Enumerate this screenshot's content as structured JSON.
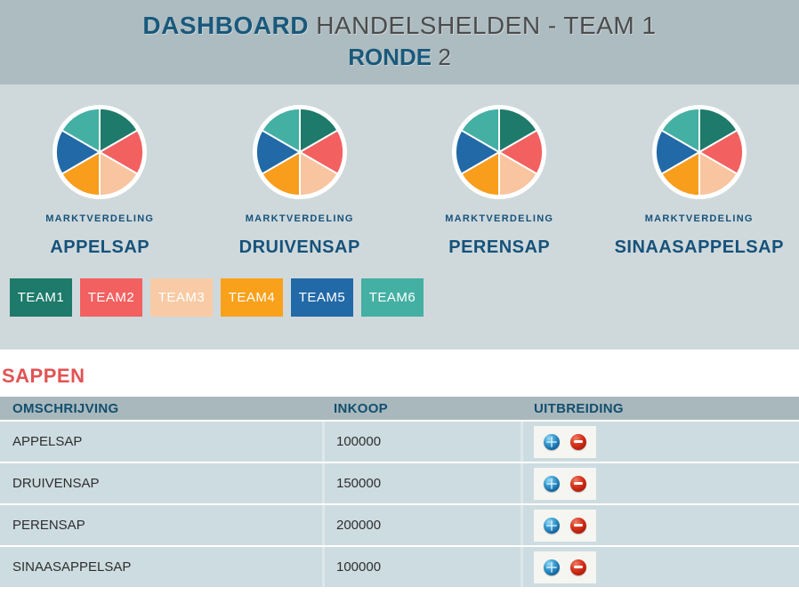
{
  "header": {
    "title_strong": "DASHBOARD",
    "title_rest": " HANDELSHELDEN - TEAM 1",
    "subtitle_strong": "RONDE",
    "subtitle_rest": " 2"
  },
  "market": {
    "caption": "MARKTVERDELING"
  },
  "chart_data": [
    {
      "type": "pie",
      "title": "APPELSAP",
      "caption": "MARKTVERDELING",
      "labels": [
        "TEAM1",
        "TEAM2",
        "TEAM3",
        "TEAM4",
        "TEAM5",
        "TEAM6"
      ],
      "values": [
        16.67,
        16.67,
        16.67,
        16.67,
        16.67,
        16.67
      ],
      "colors": [
        "#1e7a6a",
        "#f26060",
        "#f8c5a0",
        "#f99d1d",
        "#2269a8",
        "#43b0a3"
      ],
      "start_angle_deg": 0,
      "legend_position": "below-as-team-buttons"
    },
    {
      "type": "pie",
      "title": "DRUIVENSAP",
      "caption": "MARKTVERDELING",
      "labels": [
        "TEAM1",
        "TEAM2",
        "TEAM3",
        "TEAM4",
        "TEAM5",
        "TEAM6"
      ],
      "values": [
        16.67,
        16.67,
        16.67,
        16.67,
        16.67,
        16.67
      ],
      "colors": [
        "#1e7a6a",
        "#f26060",
        "#f8c5a0",
        "#f99d1d",
        "#2269a8",
        "#43b0a3"
      ],
      "start_angle_deg": 0,
      "legend_position": "below-as-team-buttons"
    },
    {
      "type": "pie",
      "title": "PERENSAP",
      "caption": "MARKTVERDELING",
      "labels": [
        "TEAM1",
        "TEAM2",
        "TEAM3",
        "TEAM4",
        "TEAM5",
        "TEAM6"
      ],
      "values": [
        16.67,
        16.67,
        16.67,
        16.67,
        16.67,
        16.67
      ],
      "colors": [
        "#1e7a6a",
        "#f26060",
        "#f8c5a0",
        "#f99d1d",
        "#2269a8",
        "#43b0a3"
      ],
      "start_angle_deg": 0,
      "legend_position": "below-as-team-buttons"
    },
    {
      "type": "pie",
      "title": "SINAASAPPELSAP",
      "caption": "MARKTVERDELING",
      "labels": [
        "TEAM1",
        "TEAM2",
        "TEAM3",
        "TEAM4",
        "TEAM5",
        "TEAM6"
      ],
      "values": [
        16.67,
        16.67,
        16.67,
        16.67,
        16.67,
        16.67
      ],
      "colors": [
        "#1e7a6a",
        "#f26060",
        "#f8c5a0",
        "#f99d1d",
        "#2269a8",
        "#43b0a3"
      ],
      "start_angle_deg": 0,
      "legend_position": "below-as-team-buttons"
    }
  ],
  "legend": {
    "teams": [
      {
        "label": "TEAM1",
        "color": "#1e7a6a"
      },
      {
        "label": "TEAM2",
        "color": "#f26060"
      },
      {
        "label": "TEAM3",
        "color": "#f8cba6"
      },
      {
        "label": "TEAM4",
        "color": "#f9a11b"
      },
      {
        "label": "TEAM5",
        "color": "#2269a8"
      },
      {
        "label": "TEAM6",
        "color": "#43b0a3"
      }
    ]
  },
  "sappen": {
    "title": "SAPPEN",
    "title_color": "#e25353",
    "columns": [
      "OMSCHRIJVING",
      "INKOOP",
      "UITBREIDING"
    ],
    "rows": [
      {
        "omschrijving": "APPELSAP",
        "inkoop": "100000"
      },
      {
        "omschrijving": "DRUIVENSAP",
        "inkoop": "150000"
      },
      {
        "omschrijving": "PERENSAP",
        "inkoop": "200000"
      },
      {
        "omschrijving": "SINAASAPPELSAP",
        "inkoop": "100000"
      }
    ],
    "action_icons": {
      "increase": "plus-sphere-icon",
      "decrease": "minus-sphere-icon"
    }
  }
}
